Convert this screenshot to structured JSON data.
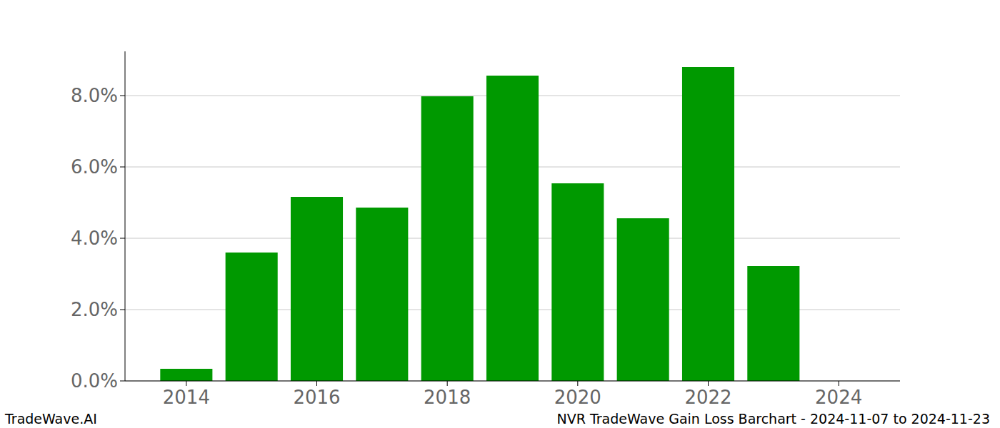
{
  "chart_data": {
    "type": "bar",
    "title": "NVR TradeWave Gain Loss Barchart - 2024-11-07 to 2024-11-23",
    "annotations": [
      "TradeWave.AI"
    ],
    "x": [
      2014,
      2015,
      2016,
      2017,
      2018,
      2019,
      2020,
      2021,
      2022,
      2023,
      2024
    ],
    "values": [
      0.34,
      3.6,
      5.16,
      4.86,
      7.98,
      8.56,
      5.54,
      4.56,
      8.8,
      3.22,
      0
    ],
    "color": "#009900",
    "xlim": [
      2013.06,
      2024.94
    ],
    "xticks": [
      2014,
      2016,
      2018,
      2020,
      2022,
      2024
    ],
    "ylim": [
      0,
      9.24
    ],
    "yticks": [
      {
        "value": 0,
        "label": "0.0%"
      },
      {
        "value": 2,
        "label": "2.0%"
      },
      {
        "value": 4,
        "label": "4.0%"
      },
      {
        "value": 6,
        "label": "6.0%"
      },
      {
        "value": 8,
        "label": "8.0%"
      }
    ],
    "grid": true
  }
}
